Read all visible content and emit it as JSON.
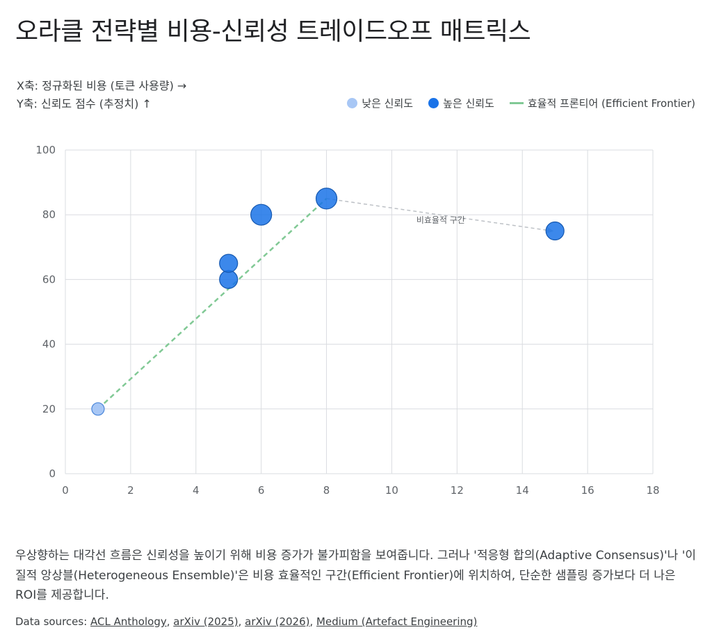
{
  "title": "오라클 전략별 비용-신뢰성 트레이드오프 매트릭스",
  "axis_desc": {
    "x": "X축: 정규화된 비용 (토큰 사용량) →",
    "y": "Y축: 신뢰도 점수 (추정치) ↑"
  },
  "legend": {
    "low": "낮은 신뢰도",
    "high": "높은 신뢰도",
    "frontier": "효율적 프론티어 (Efficient Frontier)"
  },
  "colors": {
    "low": "#a8c7f5",
    "high": "#1a73e8",
    "frontier": "#81c995",
    "inefficient": "#bdc1c6",
    "grid": "#dadce0"
  },
  "chart_data": {
    "type": "scatter",
    "xlim": [
      0,
      18
    ],
    "ylim": [
      0,
      100
    ],
    "x_ticks": [
      "0",
      "2",
      "4",
      "6",
      "8",
      "10",
      "12",
      "14",
      "16",
      "18"
    ],
    "y_ticks": [
      "0",
      "20",
      "40",
      "60",
      "80",
      "100"
    ],
    "grid": true,
    "legend_position": "top-right",
    "points": [
      {
        "x": 1,
        "y": 20,
        "level": "low"
      },
      {
        "x": 5,
        "y": 60,
        "level": "high"
      },
      {
        "x": 5,
        "y": 65,
        "level": "high"
      },
      {
        "x": 6,
        "y": 80,
        "level": "high"
      },
      {
        "x": 8,
        "y": 85,
        "level": "high"
      },
      {
        "x": 15,
        "y": 75,
        "level": "high"
      }
    ],
    "frontier": [
      {
        "x": 1,
        "y": 20
      },
      {
        "x": 8,
        "y": 85
      }
    ],
    "inefficient": [
      {
        "x": 8,
        "y": 85
      },
      {
        "x": 15,
        "y": 75
      }
    ],
    "annotation": "비효율적 구간"
  },
  "description": "우상향하는 대각선 흐름은 신뢰성을 높이기 위해 비용 증가가 불가피함을 보여줍니다. 그러나 '적응형 합의(Adaptive Consensus)'나 '이질적 앙상블(Heterogeneous Ensemble)'은 비용 효율적인 구간(Efficient Frontier)에 위치하여, 단순한 샘플링 증가보다 더 나은 ROI를 제공합니다.",
  "sources": {
    "prefix": "Data sources: ",
    "links": [
      "ACL Anthology",
      "arXiv (2025)",
      "arXiv (2026)",
      "Medium (Artefact Engineering)"
    ]
  }
}
